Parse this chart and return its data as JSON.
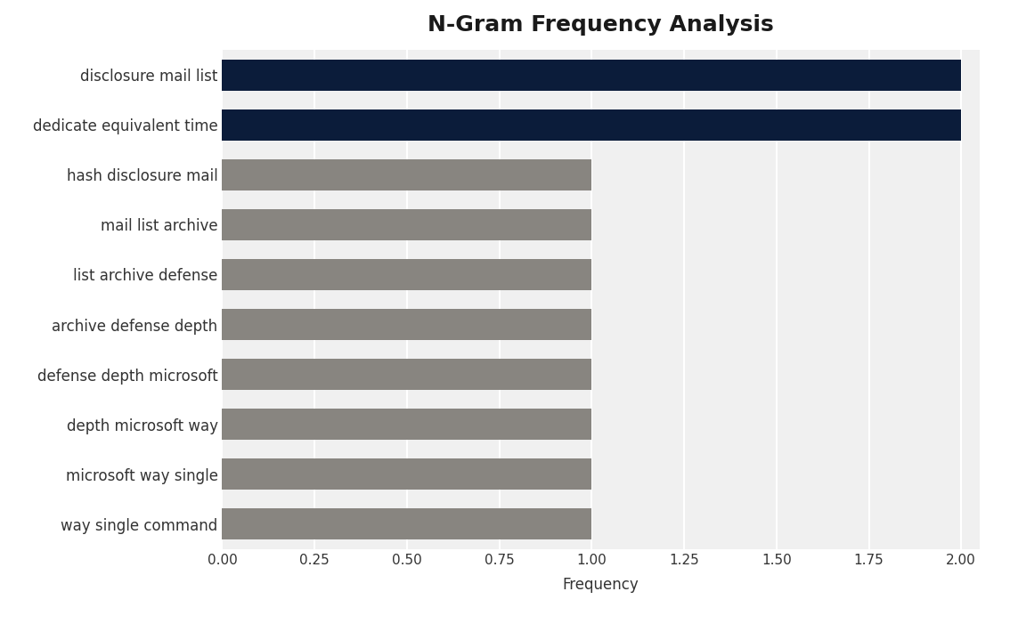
{
  "title": "N-Gram Frequency Analysis",
  "xlabel": "Frequency",
  "categories": [
    "way single command",
    "microsoft way single",
    "depth microsoft way",
    "defense depth microsoft",
    "archive defense depth",
    "list archive defense",
    "mail list archive",
    "hash disclosure mail",
    "dedicate equivalent time",
    "disclosure mail list"
  ],
  "values": [
    1,
    1,
    1,
    1,
    1,
    1,
    1,
    1,
    2,
    2
  ],
  "bar_colors": [
    "#888580",
    "#888580",
    "#888580",
    "#888580",
    "#888580",
    "#888580",
    "#888580",
    "#888580",
    "#0b1c3a",
    "#0b1c3a"
  ],
  "xlim": [
    0,
    2.05
  ],
  "xticks": [
    0.0,
    0.25,
    0.5,
    0.75,
    1.0,
    1.25,
    1.5,
    1.75,
    2.0
  ],
  "xtick_labels": [
    "0.00",
    "0.25",
    "0.50",
    "0.75",
    "1.00",
    "1.25",
    "1.50",
    "1.75",
    "2.00"
  ],
  "plot_bg_color": "#f0f0f0",
  "fig_bg_color": "#ffffff",
  "title_fontsize": 18,
  "label_fontsize": 12,
  "tick_fontsize": 11,
  "bar_height": 0.62,
  "grid_color": "#ffffff",
  "text_color": "#333333"
}
